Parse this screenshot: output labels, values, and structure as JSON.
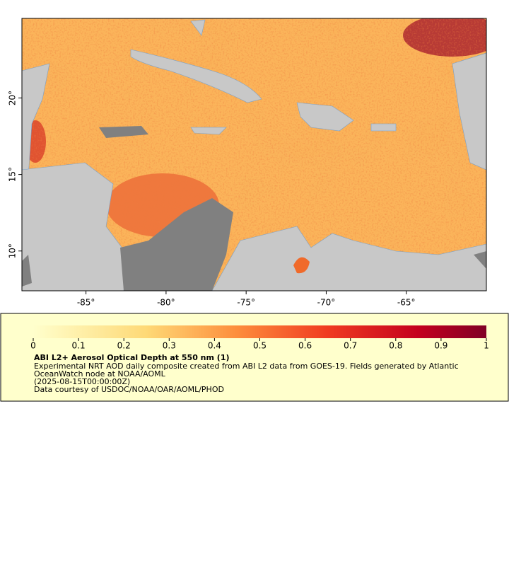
{
  "chart_data": {
    "type": "map",
    "xlim": [
      -89,
      -60
    ],
    "ylim": [
      7.4,
      25.2
    ],
    "xticks": [
      {
        "value": -85,
        "label": "-85°"
      },
      {
        "value": -80,
        "label": "-80°"
      },
      {
        "value": -75,
        "label": "-75°"
      },
      {
        "value": -70,
        "label": "-70°"
      },
      {
        "value": -65,
        "label": "-65°"
      }
    ],
    "yticks": [
      {
        "value": 10,
        "label": "10°"
      },
      {
        "value": 15,
        "label": "15°"
      },
      {
        "value": 20,
        "label": "20°"
      }
    ],
    "colorbar": {
      "lim": [
        0,
        1
      ],
      "ticks": [
        0,
        0.1,
        0.2,
        0.3,
        0.4,
        0.5,
        0.6,
        0.7,
        0.8,
        0.9,
        1
      ]
    }
  },
  "legend": {
    "title": "ABI L2+ Aerosol Optical Depth at 550 nm (1)",
    "lines": [
      "Experimental NRT AOD daily composite created from ABI L2 data from GOES-19. Fields generated by Atlantic",
      "OceanWatch node at NOAA/AOML",
      "(2025-08-15T00:00:00Z)",
      "Data courtesy of USDOC/NOAA/OAR/AOML/PHOD"
    ]
  }
}
